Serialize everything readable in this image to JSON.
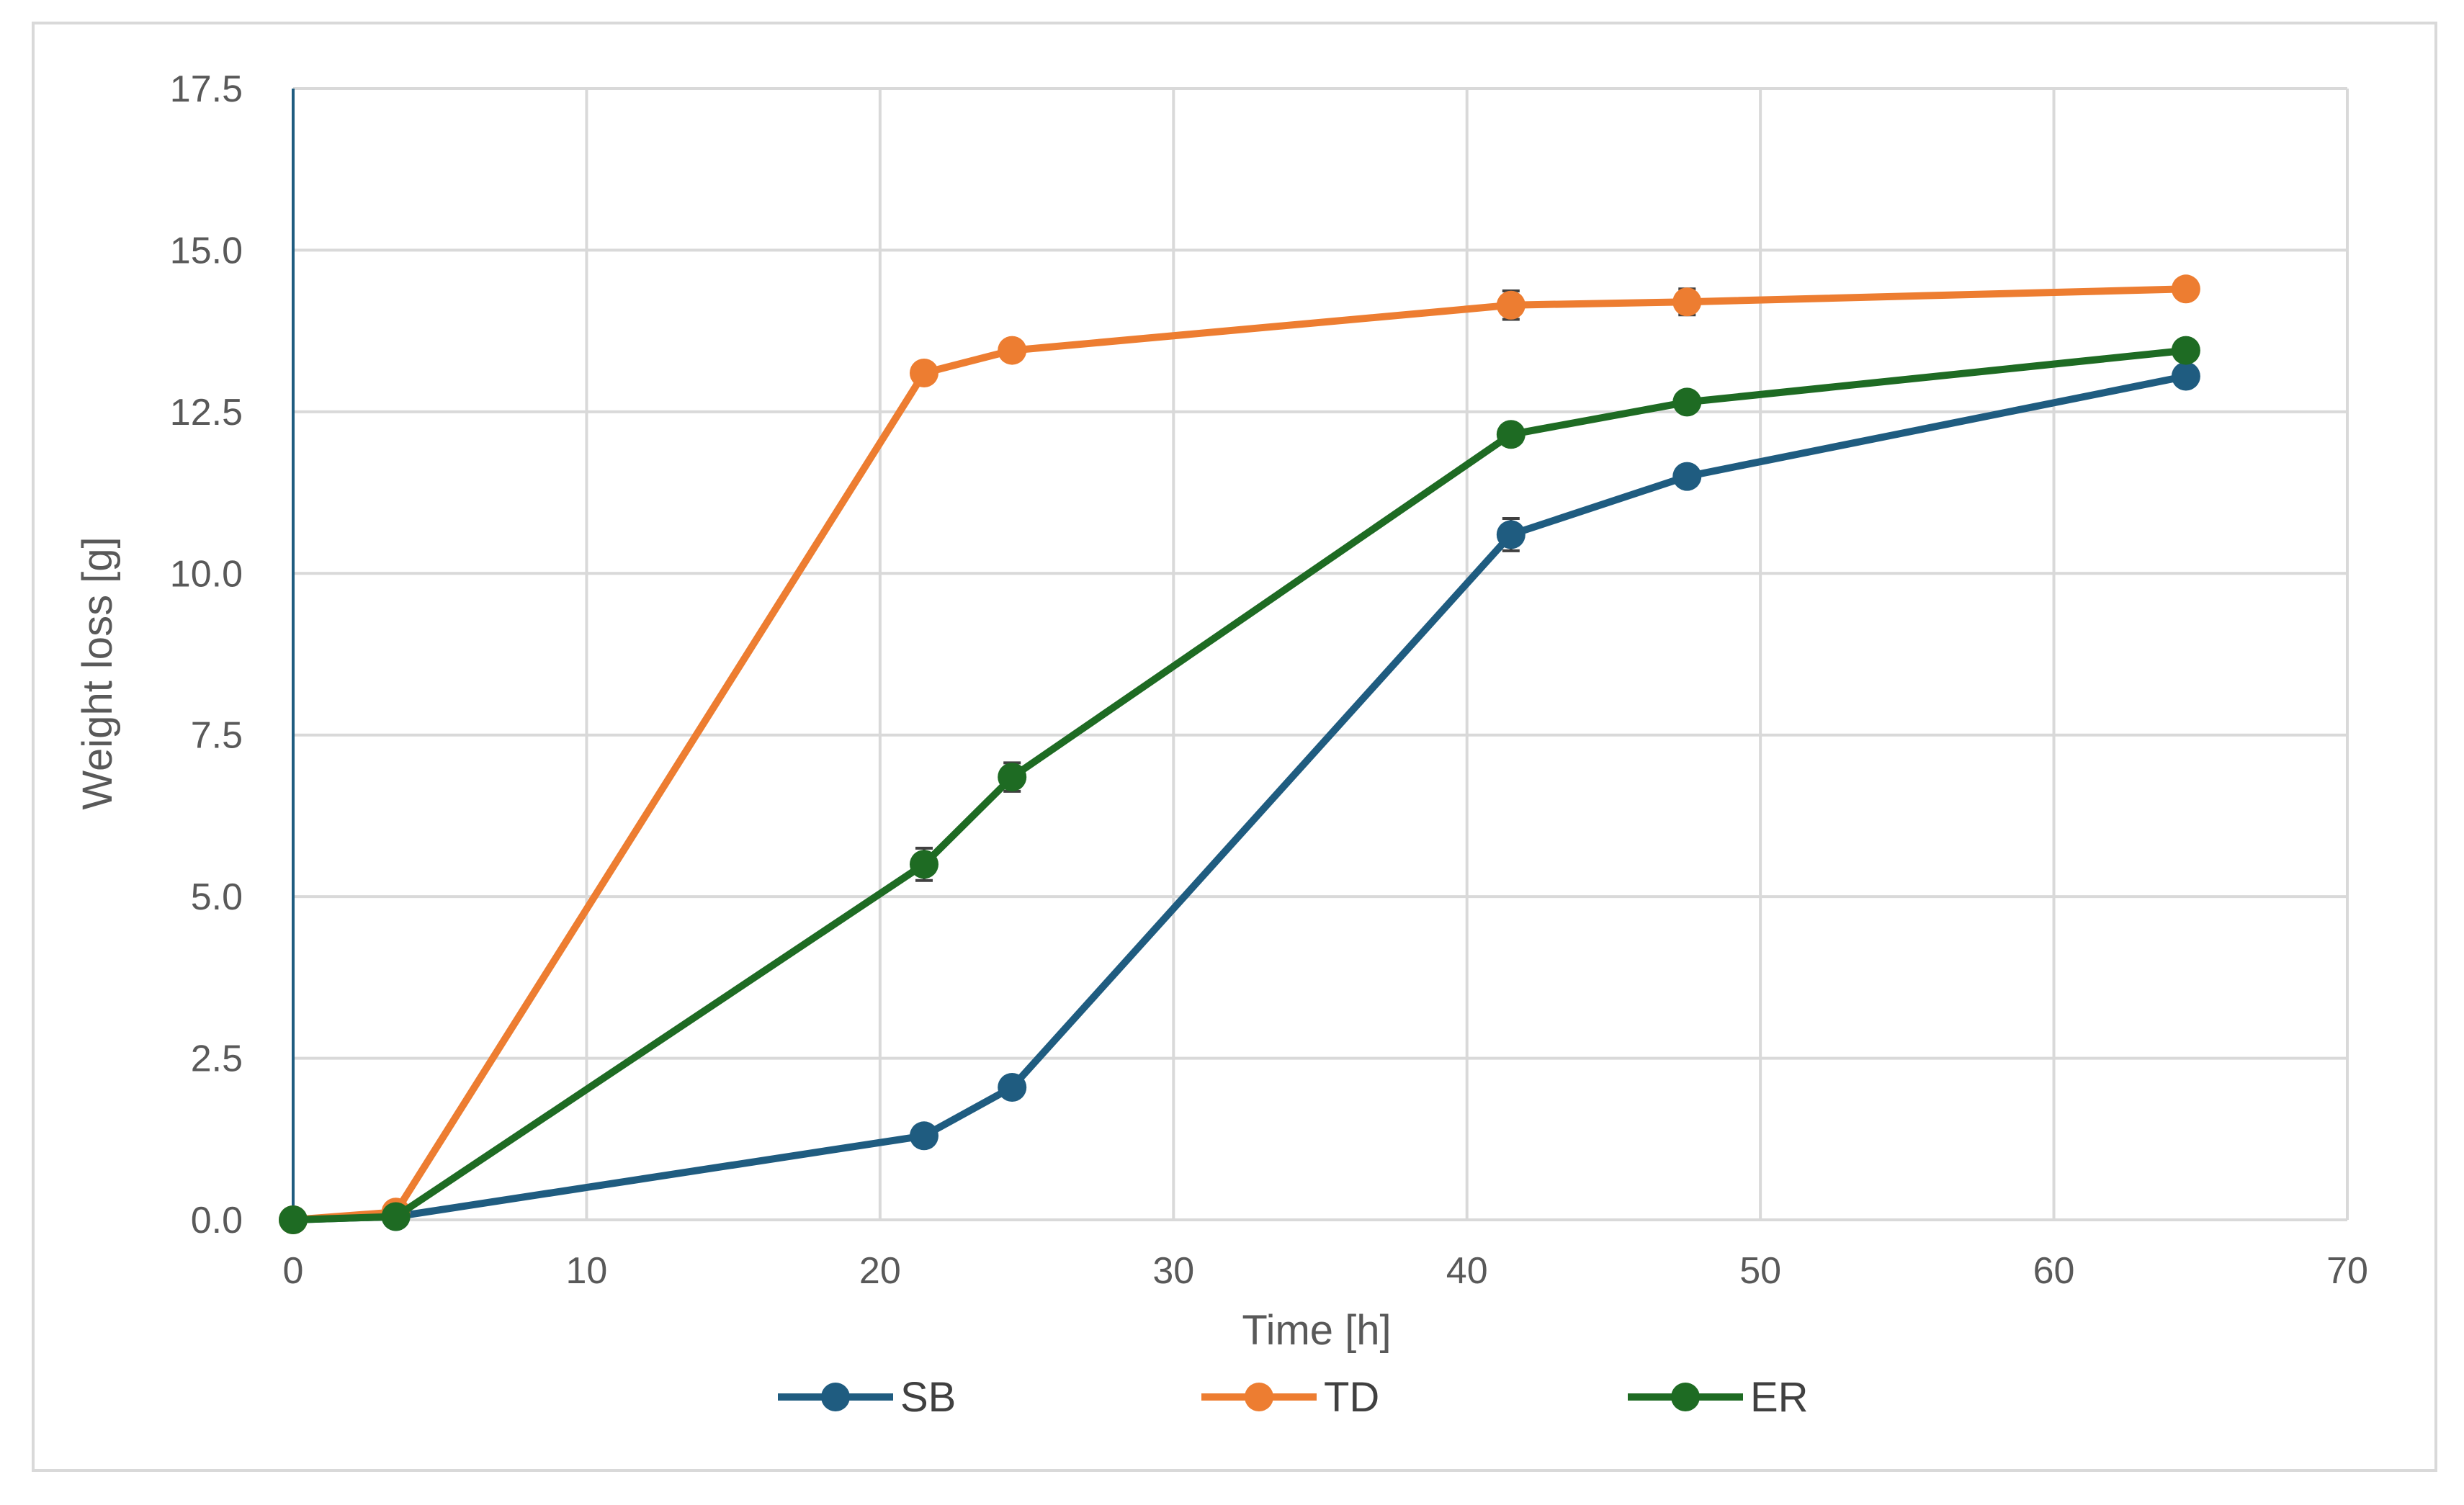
{
  "chart_data": {
    "type": "line",
    "title": "",
    "xlabel": "Time [h]",
    "ylabel": "Weight loss [g]",
    "xlim": [
      0,
      70
    ],
    "ylim": [
      0,
      17.5
    ],
    "x_ticks": [
      "0",
      "10",
      "20",
      "30",
      "40",
      "50",
      "60",
      "70"
    ],
    "y_ticks": [
      "0.0",
      "2.5",
      "5.0",
      "7.5",
      "10.0",
      "12.5",
      "15.0",
      "17.5"
    ],
    "grid": true,
    "legend_position": "bottom",
    "series": [
      {
        "name": "SB",
        "color": "#1f5c80",
        "x": [
          0,
          3.5,
          21.5,
          24.5,
          41.5,
          47.5,
          64.5
        ],
        "y": [
          0.0,
          0.05,
          1.3,
          2.05,
          10.6,
          11.5,
          13.05
        ],
        "err": [
          0.0,
          0.02,
          0.08,
          0.1,
          0.25,
          0.12,
          0.08
        ]
      },
      {
        "name": "TD",
        "color": "#ed7d31",
        "x": [
          0,
          3.5,
          21.5,
          24.5,
          41.5,
          47.5,
          64.5
        ],
        "y": [
          0.0,
          0.12,
          13.1,
          13.45,
          14.15,
          14.2,
          14.4
        ],
        "err": [
          0.0,
          0.03,
          0.08,
          0.08,
          0.22,
          0.2,
          0.08
        ]
      },
      {
        "name": "ER",
        "color": "#1e6b23",
        "x": [
          0,
          3.5,
          21.5,
          24.5,
          41.5,
          47.5,
          64.5
        ],
        "y": [
          0.0,
          0.05,
          5.5,
          6.85,
          12.15,
          12.65,
          13.45
        ],
        "err": [
          0.0,
          0.02,
          0.25,
          0.22,
          0.1,
          0.12,
          0.08
        ]
      }
    ]
  }
}
